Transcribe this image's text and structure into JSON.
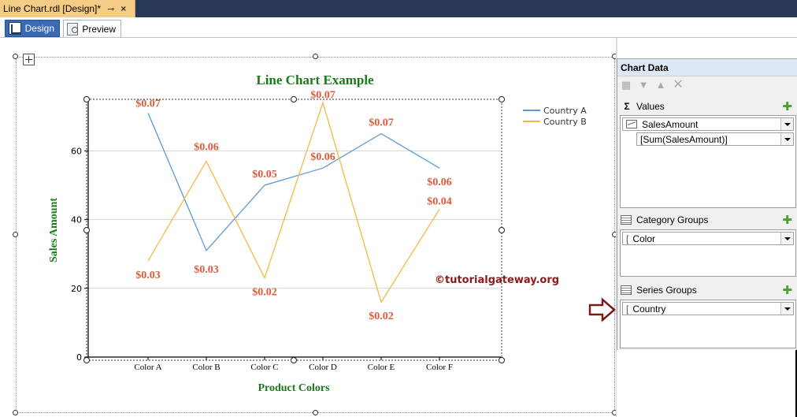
{
  "document_tab": {
    "title": "Line Chart.rdl [Design]*",
    "pin": "⊸",
    "close": "×"
  },
  "view_tabs": [
    {
      "label": "Design",
      "active": true
    },
    {
      "label": "Preview",
      "active": false
    }
  ],
  "watermark": "©tutorialgateway.org",
  "chart_data": {
    "type": "line",
    "title": "Line Chart Example",
    "xlabel": "Product Colors",
    "ylabel": "Sales Amount",
    "categories": [
      "Color A",
      "Color B",
      "Color C",
      "Color D",
      "Color E",
      "Color F"
    ],
    "ylim": [
      0,
      75
    ],
    "yticks": [
      0,
      20,
      40,
      60
    ],
    "legend_position": "top-right",
    "series": [
      {
        "name": "Country A",
        "color": "#5b9bd5",
        "values": [
          71,
          31,
          50,
          55,
          65,
          55
        ],
        "labels": [
          "$0.07",
          "$0.03",
          "$0.05",
          "$0.06",
          "$0.07",
          "$0.06"
        ]
      },
      {
        "name": "Country B",
        "color": "#f5b942",
        "values": [
          28,
          57,
          23,
          74,
          16,
          43
        ],
        "labels": [
          "$0.03",
          "$0.06",
          "$0.02",
          "$0.07",
          "$0.02",
          "$0.04"
        ]
      }
    ],
    "label_color": "#e05a3a",
    "title_color": "#1a7a1a",
    "grid": true
  },
  "chart_data_pane": {
    "header": "Chart Data",
    "values": {
      "title": "Values",
      "field": "SalesAmount",
      "expression": "[Sum(SalesAmount)]"
    },
    "category_groups": {
      "title": "Category Groups",
      "field": "Color"
    },
    "series_groups": {
      "title": "Series Groups",
      "field": "Country"
    }
  },
  "colors": {
    "accent": "#3b6ab5",
    "tab_bg": "#f5cc84",
    "add_icon": "#4aa12b",
    "arrow": "#7a1a1a"
  }
}
